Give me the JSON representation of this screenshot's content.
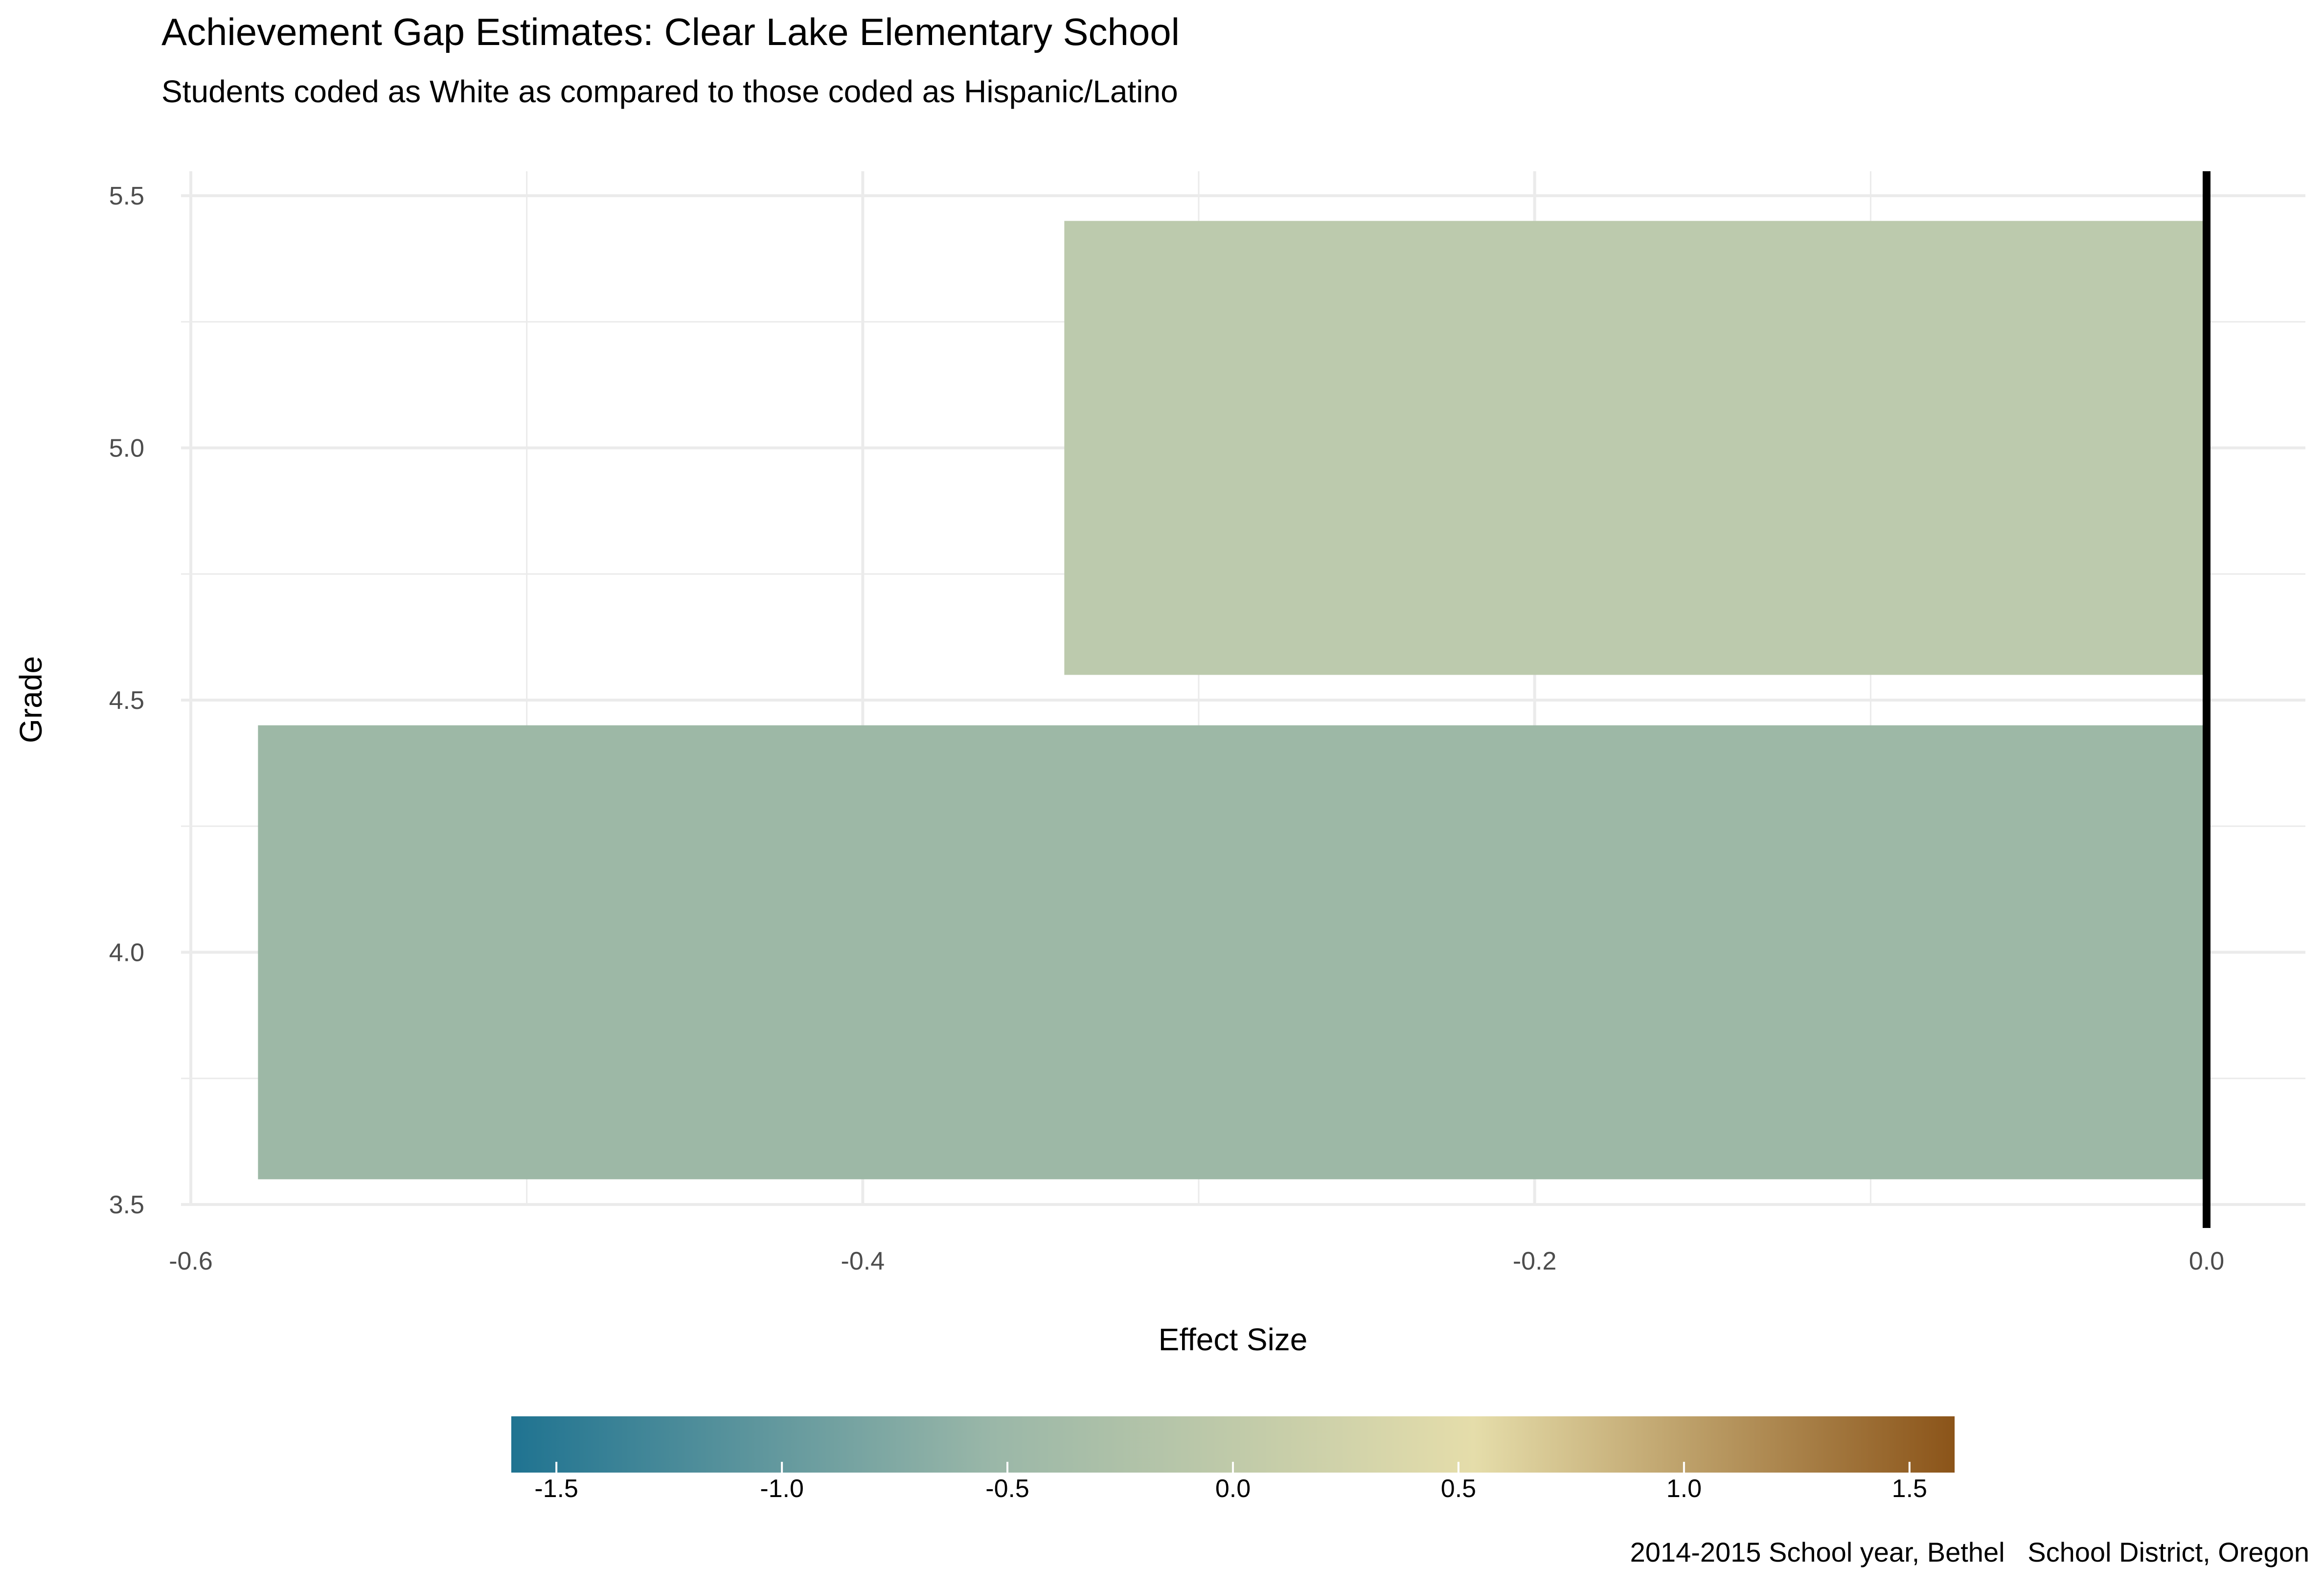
{
  "chart_data": {
    "type": "bar",
    "orientation": "horizontal",
    "title": "Achievement Gap Estimates: Clear Lake Elementary School",
    "subtitle": "Students coded as White as compared to those coded as Hispanic/Latino",
    "xlabel": "Effect Size",
    "ylabel": "Grade",
    "xlim": [
      -0.6,
      0.0
    ],
    "ylim": [
      3.5,
      5.5
    ],
    "x_ticks": [
      "-0.6",
      "-0.4",
      "-0.2",
      "0.0"
    ],
    "x_tick_values": [
      -0.6,
      -0.4,
      -0.2,
      0.0
    ],
    "y_ticks": [
      "3.5",
      "4.0",
      "4.5",
      "5.0",
      "5.5"
    ],
    "y_tick_values": [
      3.5,
      4.0,
      4.5,
      5.0,
      5.5
    ],
    "bars": [
      {
        "grade": 4,
        "value": -0.58,
        "color": "#9db8a6"
      },
      {
        "grade": 5,
        "value": -0.34,
        "color": "#bccaad"
      }
    ],
    "reference_line": 0.0,
    "grid": true,
    "legend": {
      "type": "colorbar",
      "placement": "bottom",
      "ticks": [
        "-1.5",
        "-1.0",
        "-0.5",
        "0.0",
        "0.5",
        "1.0",
        "1.5"
      ],
      "tick_values": [
        -1.5,
        -1.0,
        -0.5,
        0.0,
        0.5,
        1.0,
        1.5
      ],
      "limits": [
        -1.6,
        1.6
      ],
      "colors": [
        "#1f7391",
        "#9ab7a8",
        "#e5ddaa",
        "#8b5419"
      ]
    },
    "caption": "2014-2015 School year, Bethel   School District, Oregon"
  }
}
